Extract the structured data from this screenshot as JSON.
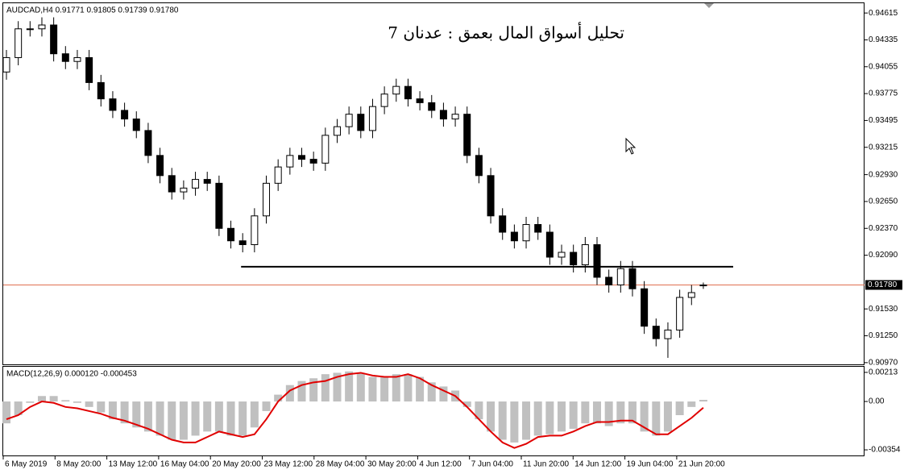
{
  "header": "AUDCAD,H4  0.91771 0.91805 0.91739 0.91780",
  "x_labels": [
    "6 May 2019",
    "8 May 20:00",
    "13 May 12:00",
    "16 May 04:00",
    "20 May 20:00",
    "23 May 12:00",
    "28 May 04:00",
    "30 May 20:00",
    "4 Jun 12:00",
    "7 Jun 04:00",
    "11 Jun 20:00",
    "14 Jun 12:00",
    "19 Jun 04:00",
    "21 Jun 20:00"
  ],
  "chart_data": [
    {
      "type": "candlestick",
      "title": "تحليل أسواق المال بعمق : عدنان 7",
      "open": [
        0.94,
        0.9415,
        0.9445,
        0.9445,
        0.9449,
        0.9419,
        0.9411,
        0.9415,
        0.9389,
        0.9372,
        0.936,
        0.9351,
        0.9339,
        0.9313,
        0.9292,
        0.9275,
        0.9279,
        0.9288,
        0.9284,
        0.9237,
        0.9224,
        0.922,
        0.925,
        0.9284,
        0.9301,
        0.9313,
        0.9309,
        0.9305,
        0.9334,
        0.9343,
        0.9356,
        0.9339,
        0.9364,
        0.9377,
        0.9385,
        0.9372,
        0.9368,
        0.936,
        0.9351,
        0.9356,
        0.9313,
        0.9292,
        0.925,
        0.9233,
        0.9224,
        0.9241,
        0.9233,
        0.9207,
        0.9212,
        0.9199,
        0.922,
        0.9186,
        0.9178,
        0.9195,
        0.9174,
        0.9135,
        0.9122,
        0.9131,
        0.9165,
        0.91771
      ],
      "high": [
        0.9423,
        0.9453,
        0.9453,
        0.9457,
        0.9457,
        0.9427,
        0.9423,
        0.9423,
        0.9397,
        0.938,
        0.9368,
        0.9359,
        0.9347,
        0.9321,
        0.93,
        0.9287,
        0.9296,
        0.9296,
        0.9292,
        0.9245,
        0.9232,
        0.9258,
        0.9292,
        0.9309,
        0.9321,
        0.9321,
        0.9317,
        0.9342,
        0.9351,
        0.9364,
        0.9364,
        0.9372,
        0.9385,
        0.9393,
        0.9393,
        0.938,
        0.9376,
        0.9368,
        0.9364,
        0.9364,
        0.9321,
        0.93,
        0.9258,
        0.9241,
        0.9249,
        0.9249,
        0.9241,
        0.922,
        0.922,
        0.9228,
        0.9228,
        0.9194,
        0.9203,
        0.9203,
        0.9182,
        0.9143,
        0.9139,
        0.9173,
        0.9178,
        0.91805
      ],
      "low": [
        0.9392,
        0.9407,
        0.9437,
        0.9437,
        0.9411,
        0.9403,
        0.9403,
        0.9381,
        0.9364,
        0.9352,
        0.9343,
        0.9331,
        0.9305,
        0.9284,
        0.9267,
        0.9267,
        0.9271,
        0.9276,
        0.9229,
        0.9216,
        0.9212,
        0.9212,
        0.9242,
        0.9276,
        0.9293,
        0.9301,
        0.9297,
        0.9297,
        0.9326,
        0.9335,
        0.9331,
        0.9331,
        0.9356,
        0.9369,
        0.9364,
        0.936,
        0.9352,
        0.9343,
        0.9343,
        0.9305,
        0.9284,
        0.9242,
        0.9225,
        0.9216,
        0.9216,
        0.9225,
        0.9199,
        0.9199,
        0.9191,
        0.9191,
        0.9178,
        0.917,
        0.917,
        0.9166,
        0.9127,
        0.9114,
        0.9102,
        0.9123,
        0.9157,
        0.91739
      ],
      "close": [
        0.9415,
        0.9445,
        0.9445,
        0.9449,
        0.9419,
        0.9411,
        0.9415,
        0.9389,
        0.9372,
        0.936,
        0.9351,
        0.9339,
        0.9313,
        0.9292,
        0.9275,
        0.9279,
        0.9288,
        0.9284,
        0.9237,
        0.9224,
        0.922,
        0.925,
        0.9284,
        0.9301,
        0.9313,
        0.9309,
        0.9305,
        0.9334,
        0.9343,
        0.9356,
        0.9339,
        0.9364,
        0.9377,
        0.9385,
        0.9372,
        0.9368,
        0.936,
        0.9351,
        0.9356,
        0.9313,
        0.9292,
        0.925,
        0.9233,
        0.9224,
        0.9241,
        0.9233,
        0.9207,
        0.9212,
        0.9199,
        0.922,
        0.9186,
        0.9178,
        0.9195,
        0.9174,
        0.9135,
        0.9122,
        0.9131,
        0.9165,
        0.917,
        0.9178
      ],
      "ylim": [
        0.90952,
        0.94717
      ],
      "yticks": [
        0.94615,
        0.94335,
        0.94055,
        0.93775,
        0.93495,
        0.93215,
        {
          "value": 0.9293,
          "label": "0.92930"
        },
        {
          "value": 0.9265,
          "label": "0.92650"
        },
        {
          "value": 0.9237,
          "label": "0.92370"
        },
        {
          "value": 0.9209,
          "label": "0.92090"
        },
        {
          "value": 0.9153,
          "label": "0.91530"
        },
        {
          "value": 0.9125,
          "label": "0.91250"
        },
        {
          "value": 0.9097,
          "label": "0.90970"
        }
      ],
      "support": 0.9197,
      "last_price": {
        "value": 0.9178,
        "label": "0.91780"
      },
      "line_color": "#e07050"
    },
    {
      "type": "macd",
      "title": "MACD(12,26,9) 0.000120 -0.000453",
      "histogram": [
        -0.0016,
        -0.001,
        -0.0001,
        0.0004,
        0.0004,
        0.0001,
        -0.0001,
        -0.0004,
        -0.0008,
        -0.0013,
        -0.0016,
        -0.0019,
        -0.0022,
        -0.0025,
        -0.0028,
        -0.0028,
        -0.0025,
        -0.0022,
        -0.0022,
        -0.0025,
        -0.0025,
        -0.0019,
        -0.0007,
        0.0005,
        0.0012,
        0.0015,
        0.0017,
        0.002,
        0.0021,
        0.0022,
        0.0021,
        0.0018,
        0.0018,
        0.002,
        0.002,
        0.0018,
        0.0014,
        0.0011,
        0.0008,
        -0.0004,
        -0.0013,
        -0.0022,
        -0.0028,
        -0.003,
        -0.0028,
        -0.0025,
        -0.0024,
        -0.0022,
        -0.002,
        -0.0016,
        -0.0016,
        -0.0018,
        -0.0016,
        -0.0016,
        -0.0022,
        -0.0025,
        -0.0022,
        -0.001,
        -0.0004,
        0.00012
      ],
      "signal": [
        -0.0013,
        -0.001,
        -0.0004,
        0.0,
        -0.0001,
        -0.0004,
        -0.0005,
        -0.0007,
        -0.0009,
        -0.0012,
        -0.0014,
        -0.0017,
        -0.002,
        -0.0024,
        -0.0028,
        -0.003,
        -0.003,
        -0.0026,
        -0.0022,
        -0.0024,
        -0.0026,
        -0.0024,
        -0.0013,
        0.0,
        0.0008,
        0.0012,
        0.0014,
        0.0015,
        0.0018,
        0.002,
        0.0021,
        0.0019,
        0.0018,
        0.0018,
        0.002,
        0.0017,
        0.0012,
        0.0008,
        0.0004,
        -0.0004,
        -0.0013,
        -0.0022,
        -0.003,
        -0.0034,
        -0.0031,
        -0.0026,
        -0.0025,
        -0.0025,
        -0.0022,
        -0.0018,
        -0.0015,
        -0.0015,
        -0.0014,
        -0.0014,
        -0.0019,
        -0.0024,
        -0.0024,
        -0.0018,
        -0.0012,
        -0.000453
      ],
      "histogram_color": "#c0c0c0",
      "signal_color": "#e00000",
      "ylim": [
        -0.00395,
        0.00254
      ],
      "yticks": [
        0.00213,
        {
          "value": 0,
          "label": "0.00"
        },
        -0.00354
      ]
    }
  ]
}
